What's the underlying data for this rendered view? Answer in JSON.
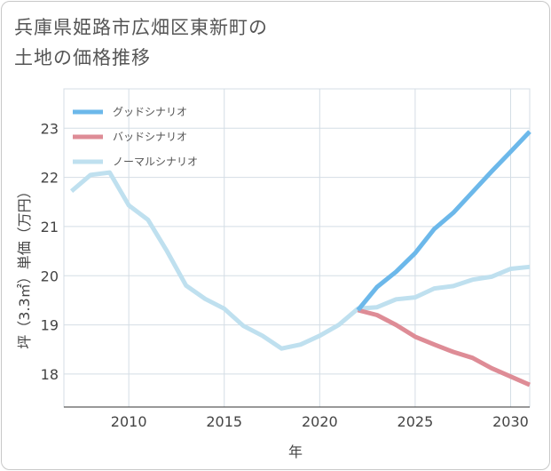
{
  "title": {
    "line1": "兵庫県姫路市広畑区東新町の",
    "line2": "土地の価格推移"
  },
  "chart_data": {
    "type": "line",
    "xlabel": "年",
    "ylabel": "坪（3.3㎡）単価（万円）",
    "xlim": [
      2006.6,
      2031
    ],
    "ylim": [
      17.33,
      23.8
    ],
    "x_ticks": [
      2010,
      2015,
      2020,
      2025,
      2030
    ],
    "y_ticks": [
      18,
      19,
      20,
      21,
      22,
      23
    ],
    "grid": true,
    "legend_position": "top-left",
    "series": [
      {
        "key": "good",
        "name": "グッドシナリオ",
        "color": "#6cb8ea",
        "x": [
          2022,
          2023,
          2024,
          2025,
          2026,
          2027,
          2028,
          2029,
          2030,
          2031
        ],
        "y": [
          19.3,
          19.77,
          20.08,
          20.46,
          20.95,
          21.28,
          21.7,
          22.12,
          22.52,
          22.93
        ]
      },
      {
        "key": "bad",
        "name": "バッドシナリオ",
        "color": "#de8c96",
        "x": [
          2022,
          2023,
          2024,
          2025,
          2026,
          2027,
          2028,
          2029,
          2030,
          2031
        ],
        "y": [
          19.3,
          19.2,
          19.0,
          18.76,
          18.6,
          18.45,
          18.33,
          18.12,
          17.95,
          17.78
        ]
      },
      {
        "key": "normal",
        "name": "ノーマルシナリオ",
        "color": "#bfe0ef",
        "x": [
          2007,
          2008,
          2009,
          2010,
          2011,
          2012,
          2013,
          2014,
          2015,
          2016,
          2017,
          2018,
          2019,
          2020,
          2021,
          2022,
          2023,
          2024,
          2025,
          2026,
          2027,
          2028,
          2029,
          2030,
          2031
        ],
        "y": [
          21.72,
          22.05,
          22.1,
          21.43,
          21.14,
          20.5,
          19.8,
          19.53,
          19.33,
          18.98,
          18.78,
          18.52,
          18.6,
          18.78,
          19.0,
          19.33,
          19.36,
          19.52,
          19.56,
          19.74,
          19.79,
          19.92,
          19.98,
          20.14,
          20.18
        ]
      }
    ]
  }
}
